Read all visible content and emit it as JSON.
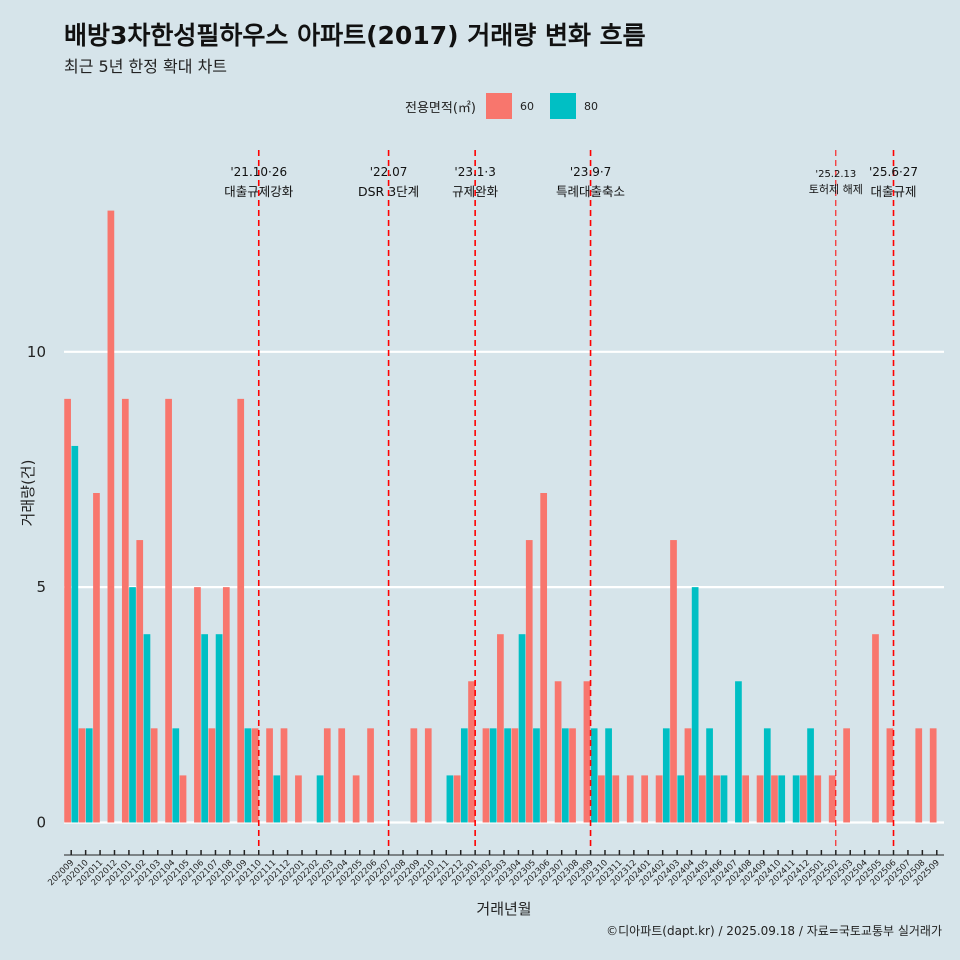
{
  "chart_data": {
    "type": "bar",
    "title": "배방3차한성필하우스 아파트(2017) 거래량 변화 흐름",
    "subtitle": "최근 5년 한정 확대 차트",
    "xlabel": "거래년월",
    "ylabel": "거래량(건)",
    "ylim": [
      -0.5,
      14.5
    ],
    "yticks": [
      0,
      5,
      10
    ],
    "legend_title": "전용면적(㎡)",
    "legend_position": "top",
    "grid": true,
    "categories": [
      "202009",
      "202010",
      "202011",
      "202012",
      "202101",
      "202102",
      "202103",
      "202104",
      "202105",
      "202106",
      "202107",
      "202108",
      "202109",
      "202110",
      "202111",
      "202112",
      "202201",
      "202202",
      "202203",
      "202204",
      "202205",
      "202206",
      "202207",
      "202208",
      "202209",
      "202210",
      "202211",
      "202212",
      "202301",
      "202302",
      "202303",
      "202304",
      "202305",
      "202306",
      "202307",
      "202308",
      "202309",
      "202310",
      "202311",
      "202312",
      "202401",
      "202402",
      "202403",
      "202404",
      "202405",
      "202406",
      "202407",
      "202408",
      "202409",
      "202410",
      "202411",
      "202412",
      "202501",
      "202502",
      "202503",
      "202504",
      "202505",
      "202506",
      "202507",
      "202508",
      "202509"
    ],
    "series": [
      {
        "name": "60",
        "color": "#f8766d",
        "values": [
          9,
          2,
          7,
          13,
          9,
          6,
          2,
          9,
          1,
          5,
          2,
          5,
          9,
          2,
          2,
          2,
          1,
          0,
          2,
          2,
          1,
          2,
          0,
          0,
          2,
          2,
          0,
          1,
          3,
          2,
          4,
          2,
          6,
          7,
          3,
          2,
          3,
          1,
          1,
          1,
          1,
          1,
          6,
          2,
          1,
          1,
          0,
          1,
          1,
          1,
          0,
          1,
          1,
          1,
          2,
          0,
          4,
          2,
          0,
          2,
          2
        ]
      },
      {
        "name": "80",
        "color": "#00bfc4",
        "values": [
          8,
          2,
          0,
          0,
          5,
          4,
          0,
          2,
          0,
          4,
          4,
          0,
          2,
          0,
          1,
          0,
          0,
          1,
          0,
          0,
          0,
          0,
          0,
          0,
          0,
          0,
          1,
          2,
          0,
          2,
          2,
          4,
          2,
          0,
          2,
          0,
          2,
          2,
          0,
          0,
          0,
          2,
          1,
          5,
          2,
          1,
          3,
          0,
          2,
          1,
          1,
          2,
          0,
          0,
          0,
          0,
          0,
          0,
          0,
          0,
          0
        ]
      }
    ],
    "annotations": [
      {
        "date": "202110",
        "line1": "'21.10·26",
        "line2": "대출규제강화"
      },
      {
        "date": "202207",
        "line1": "'22.07",
        "line2": "DSR 3단계"
      },
      {
        "date": "202301",
        "line1": "'23.1·3",
        "line2": "규제완화"
      },
      {
        "date": "202309",
        "line1": "'23.9·7",
        "line2": "특례대출축소"
      },
      {
        "date": "202502",
        "line1": "'25.2.13",
        "line2": "토허제 해제"
      },
      {
        "date": "202506",
        "line1": "'25.6·27",
        "line2": "대출규제"
      }
    ]
  },
  "caption": "©디아파트(dapt.kr) / 2025.09.18 / 자료=국토교통부 실거래가"
}
